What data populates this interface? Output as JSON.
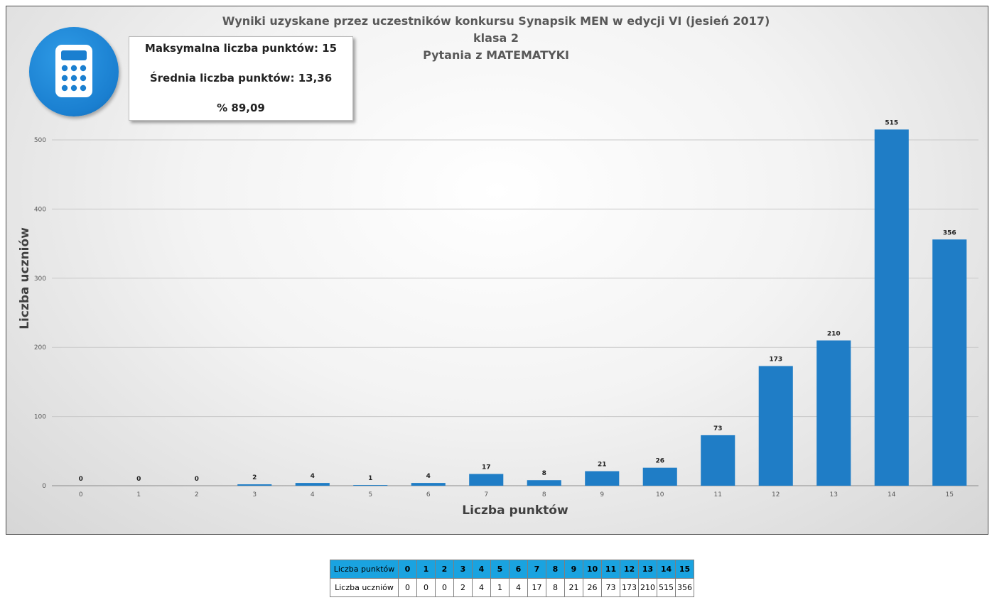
{
  "stats": {
    "max_points": "Maksymalna liczba punktów: 15",
    "average": "Średnia liczba punktów: 13,36",
    "percent": "% 89,09"
  },
  "icons": {
    "badge": "calculator-icon"
  },
  "colors": {
    "bar": "#1f7dc6",
    "badge": "#1a7fd0",
    "table_header": "#1aa3e0"
  },
  "chart_data": {
    "type": "bar",
    "title": "Wyniki uzyskane przez uczestników konkursu Synapsik MEN w edycji VI (jesień 2017)",
    "subtitle_lines": [
      "klasa 2",
      "Pytania z MATEMATYKI"
    ],
    "xlabel": "Liczba punktów",
    "ylabel": "Liczba uczniów",
    "categories": [
      "0",
      "1",
      "2",
      "3",
      "4",
      "5",
      "6",
      "7",
      "8",
      "9",
      "10",
      "11",
      "12",
      "13",
      "14",
      "15"
    ],
    "values": [
      0,
      0,
      0,
      2,
      4,
      1,
      4,
      17,
      8,
      21,
      26,
      73,
      173,
      210,
      515,
      356
    ],
    "ylim": [
      0,
      500
    ],
    "yticks": [
      0,
      100,
      200,
      300,
      400,
      500
    ],
    "grid": true,
    "legend": "none"
  },
  "table": {
    "row1_label": "Liczba punktów",
    "row2_label": "Liczba uczniów",
    "points": [
      "0",
      "1",
      "2",
      "3",
      "4",
      "5",
      "6",
      "7",
      "8",
      "9",
      "10",
      "11",
      "12",
      "13",
      "14",
      "15"
    ],
    "counts": [
      "0",
      "0",
      "0",
      "2",
      "4",
      "1",
      "4",
      "17",
      "8",
      "21",
      "26",
      "73",
      "173",
      "210",
      "515",
      "356"
    ]
  }
}
